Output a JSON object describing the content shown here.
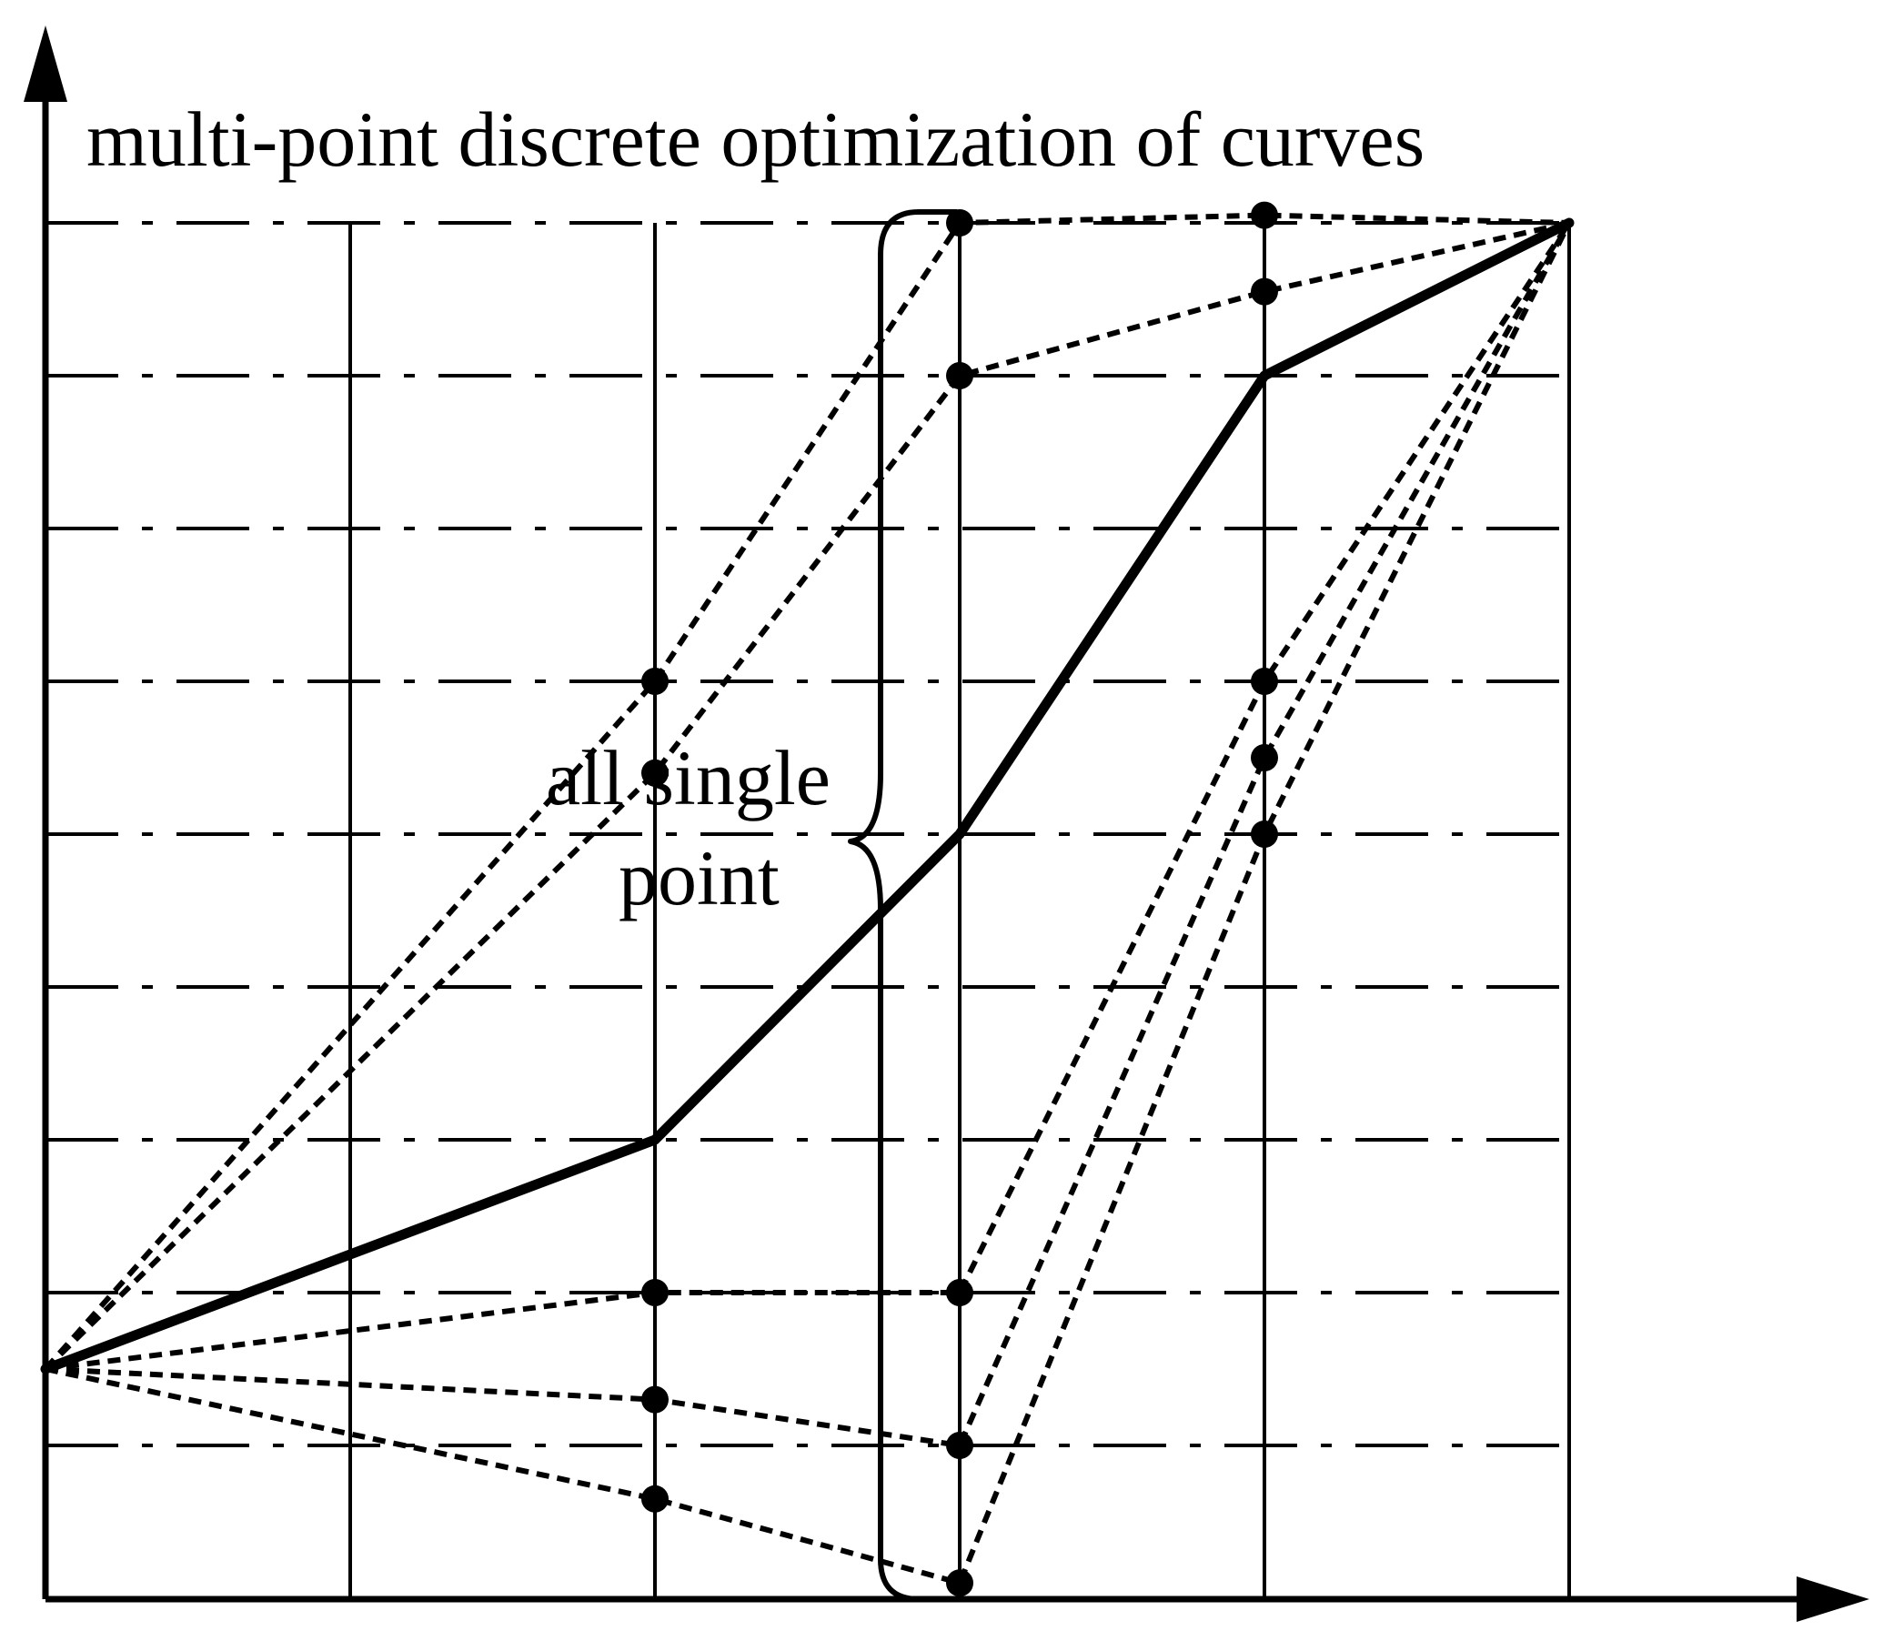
{
  "title": "multi-point discrete optimization of curves",
  "annotation": {
    "line1": "all single",
    "line2": "point"
  },
  "diagram": {
    "columns": 5,
    "rows": 8,
    "main_curve": [
      [
        0,
        1.5
      ],
      [
        2,
        3
      ],
      [
        3,
        5
      ],
      [
        4,
        8
      ],
      [
        5,
        9
      ]
    ],
    "candidate_curves": [
      [
        [
          0,
          1.5
        ],
        [
          2,
          6
        ],
        [
          3,
          9
        ],
        [
          4,
          9.05
        ],
        [
          5,
          9
        ]
      ],
      [
        [
          0,
          1.5
        ],
        [
          2,
          5.4
        ],
        [
          3,
          8
        ],
        [
          4,
          8.55
        ],
        [
          5,
          9
        ]
      ],
      [
        [
          0,
          1.5
        ],
        [
          2,
          2
        ],
        [
          3,
          2
        ],
        [
          4,
          6
        ],
        [
          5,
          9
        ]
      ],
      [
        [
          0,
          1.5
        ],
        [
          2,
          1.3
        ],
        [
          3,
          1
        ],
        [
          4,
          5.5
        ],
        [
          5,
          9
        ]
      ],
      [
        [
          0,
          1.5
        ],
        [
          2,
          0.65
        ],
        [
          3,
          0.1
        ],
        [
          4,
          5
        ],
        [
          5,
          9
        ]
      ]
    ]
  }
}
